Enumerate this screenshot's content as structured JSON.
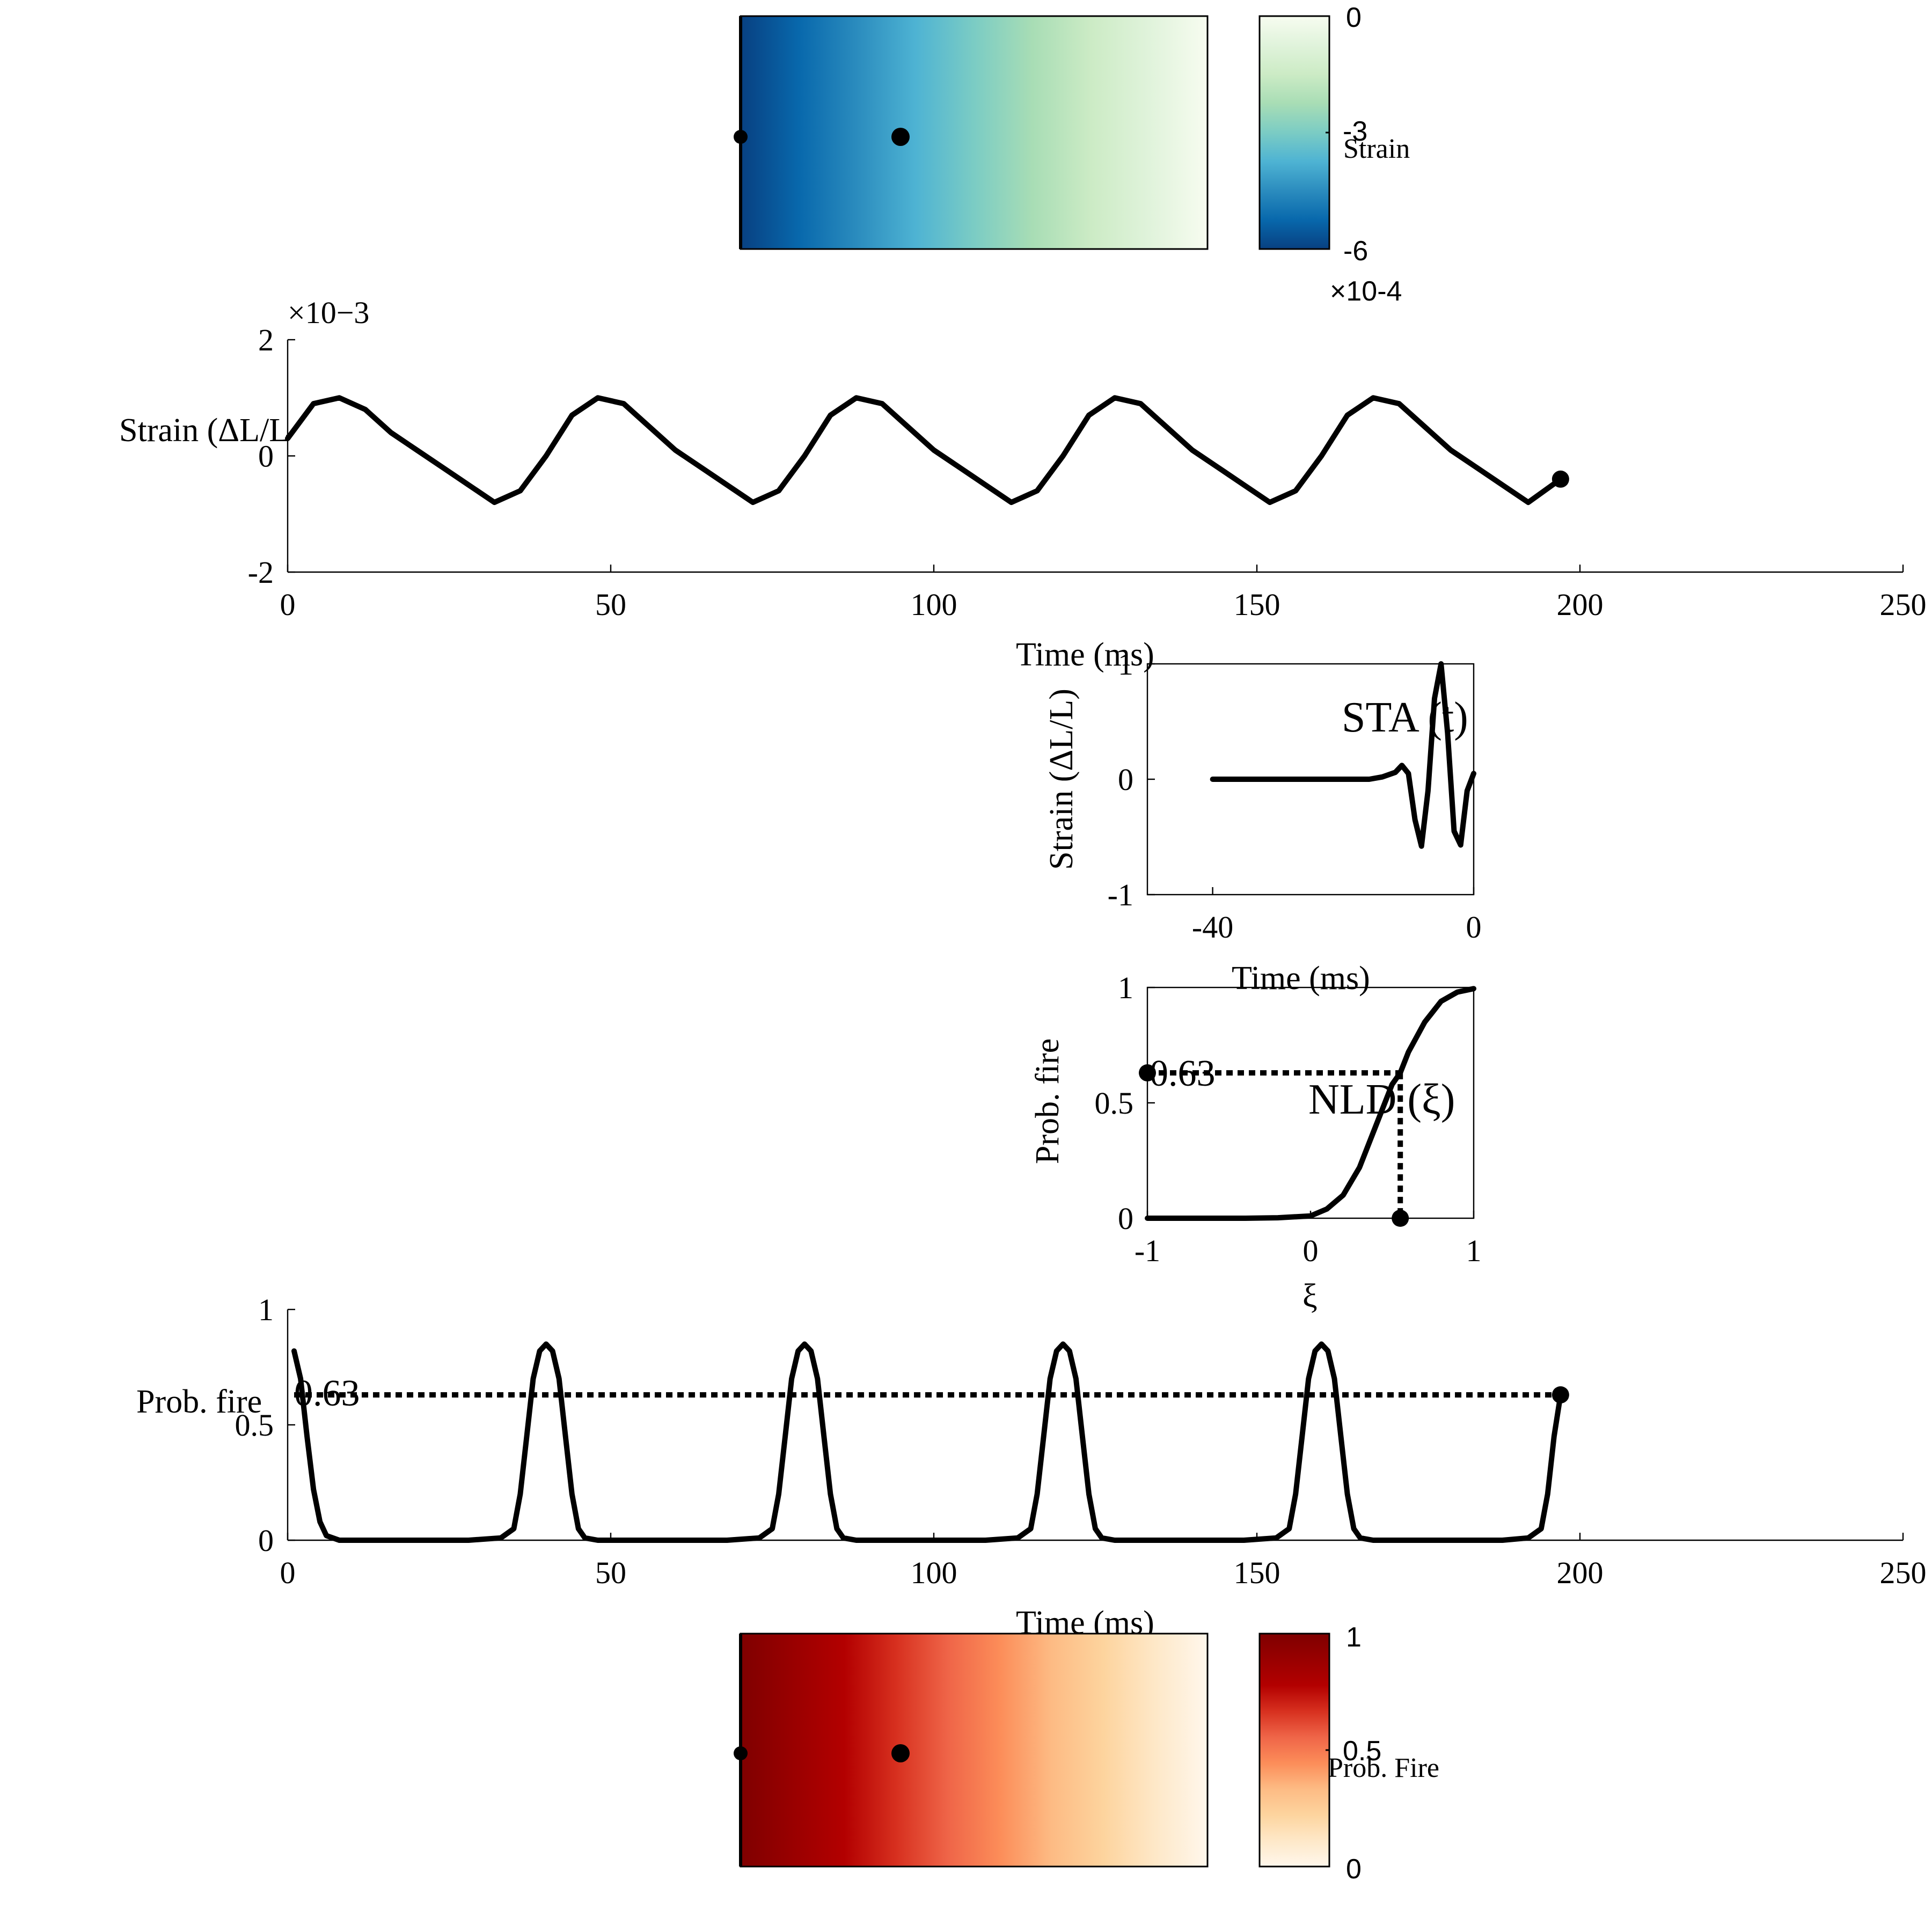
{
  "chart_data": [
    {
      "id": "strain_map",
      "type": "heatmap",
      "colormap": "GnBu",
      "colors": [
        "#084081",
        "#0868ac",
        "#2b8cbe",
        "#4eb3d3",
        "#7bccc4",
        "#a8ddb5",
        "#ccebc5",
        "#e0f3db",
        "#f7fcf0"
      ],
      "values_left_to_right": [
        -0.0006,
        0
      ],
      "markers": [
        "left-edge",
        "inner-point"
      ],
      "colorbar": {
        "ticks": [
          "0",
          "-3",
          "-6"
        ],
        "label": "Strain",
        "multiplier": "×10-4",
        "range": [
          -6,
          0
        ]
      }
    },
    {
      "id": "strain_trace",
      "type": "line",
      "xlabel": "Time (ms)",
      "ylabel": "Strain (ΔL/L",
      "xlim": [
        0,
        250
      ],
      "ylim": [
        -0.002,
        0.002
      ],
      "xticks": [
        "0",
        "50",
        "100",
        "150",
        "200",
        "250"
      ],
      "yticks": [
        "2",
        "0",
        "-2"
      ],
      "multiplier": "×10−3",
      "series": [
        {
          "x": [
            0,
            4,
            8,
            12,
            16,
            20,
            24,
            28,
            32,
            36,
            40,
            44,
            48,
            52,
            56,
            60,
            64,
            68,
            72,
            76,
            80,
            84,
            88,
            92,
            96,
            100,
            104,
            108,
            112,
            116,
            120,
            124,
            128,
            132,
            136,
            140,
            144,
            148,
            152,
            156,
            160,
            164,
            168,
            172,
            176,
            180,
            184,
            188,
            192,
            197
          ],
          "y": [
            0.0003,
            0.0009,
            0.001,
            0.0008,
            0.0004,
            0.0001,
            -0.0002,
            -0.0005,
            -0.0008,
            -0.0006,
            0.0,
            0.0007,
            0.001,
            0.0009,
            0.0005,
            0.0001,
            -0.0002,
            -0.0005,
            -0.0008,
            -0.0006,
            0.0,
            0.0007,
            0.001,
            0.0009,
            0.0005,
            0.0001,
            -0.0002,
            -0.0005,
            -0.0008,
            -0.0006,
            0.0,
            0.0007,
            0.001,
            0.0009,
            0.0005,
            0.0001,
            -0.0002,
            -0.0005,
            -0.0008,
            -0.0006,
            0.0,
            0.0007,
            0.001,
            0.0009,
            0.0005,
            0.0001,
            -0.0002,
            -0.0005,
            -0.0008,
            -0.0004
          ]
        }
      ],
      "marker": {
        "x": 197,
        "y": -0.0004
      }
    },
    {
      "id": "sta",
      "type": "line",
      "annotation": "STA (t)",
      "xlabel": "Time (ms)",
      "ylabel": "Strain (ΔL/L)",
      "xlim": [
        -50,
        0
      ],
      "ylim": [
        -1,
        1
      ],
      "xticks": [
        "-40",
        "0"
      ],
      "yticks": [
        "1",
        "0",
        "-1"
      ],
      "series": [
        {
          "x": [
            -40,
            -36,
            -32,
            -28,
            -24,
            -20,
            -16,
            -14,
            -12,
            -11,
            -10,
            -9,
            -8,
            -7,
            -6,
            -5,
            -4,
            -3,
            -2,
            -1,
            0
          ],
          "y": [
            0,
            0,
            0,
            0,
            0,
            0,
            0,
            0.02,
            0.06,
            0.12,
            0.05,
            -0.35,
            -0.58,
            -0.1,
            0.7,
            1.0,
            0.4,
            -0.45,
            -0.57,
            -0.1,
            0.05
          ]
        }
      ]
    },
    {
      "id": "nld",
      "type": "line",
      "annotation": "NLD (ξ)",
      "xlabel": "ξ",
      "ylabel": "Prob. fire",
      "xlim": [
        -1,
        1
      ],
      "ylim": [
        0,
        1
      ],
      "xticks": [
        "-1",
        "0",
        "1"
      ],
      "yticks": [
        "1",
        "0.5",
        "0"
      ],
      "series": [
        {
          "x": [
            -1,
            -0.8,
            -0.6,
            -0.4,
            -0.2,
            0,
            0.1,
            0.2,
            0.3,
            0.4,
            0.5,
            0.55,
            0.6,
            0.7,
            0.8,
            0.9,
            1.0
          ],
          "y": [
            0,
            0,
            0,
            0,
            0.002,
            0.01,
            0.04,
            0.1,
            0.22,
            0.4,
            0.58,
            0.63,
            0.72,
            0.85,
            0.94,
            0.98,
            0.995
          ]
        }
      ],
      "readout": {
        "xi": 0.55,
        "p": 0.63,
        "label": "0.63"
      }
    },
    {
      "id": "prob_trace",
      "type": "line",
      "xlabel": "Time (ms)",
      "ylabel": "Prob. fire",
      "xlim": [
        0,
        250
      ],
      "ylim": [
        0,
        1
      ],
      "xticks": [
        "0",
        "50",
        "100",
        "150",
        "200",
        "250"
      ],
      "yticks": [
        "1",
        "0.5",
        "0"
      ],
      "series": [
        {
          "x": [
            1,
            2,
            3,
            4,
            5,
            6,
            8,
            12,
            20,
            28,
            33,
            35,
            36,
            37,
            38,
            39,
            40,
            41,
            42,
            43,
            44,
            45,
            46,
            48,
            52,
            60,
            68,
            73,
            75,
            76,
            77,
            78,
            79,
            80,
            81,
            82,
            83,
            84,
            85,
            86,
            88,
            92,
            100,
            108,
            113,
            115,
            116,
            117,
            118,
            119,
            120,
            121,
            122,
            123,
            124,
            125,
            126,
            128,
            132,
            140,
            148,
            153,
            155,
            156,
            157,
            158,
            159,
            160,
            161,
            162,
            163,
            164,
            165,
            166,
            168,
            172,
            180,
            188,
            192,
            194,
            195,
            196,
            197
          ],
          "y": [
            0.82,
            0.7,
            0.45,
            0.22,
            0.08,
            0.02,
            0.0,
            0,
            0,
            0,
            0.01,
            0.05,
            0.2,
            0.45,
            0.7,
            0.82,
            0.85,
            0.82,
            0.7,
            0.45,
            0.2,
            0.05,
            0.01,
            0.0,
            0,
            0,
            0,
            0.01,
            0.05,
            0.2,
            0.45,
            0.7,
            0.82,
            0.85,
            0.82,
            0.7,
            0.45,
            0.2,
            0.05,
            0.01,
            0.0,
            0,
            0,
            0,
            0.01,
            0.05,
            0.2,
            0.45,
            0.7,
            0.82,
            0.85,
            0.82,
            0.7,
            0.45,
            0.2,
            0.05,
            0.01,
            0.0,
            0,
            0,
            0,
            0.01,
            0.05,
            0.2,
            0.45,
            0.7,
            0.82,
            0.85,
            0.82,
            0.7,
            0.45,
            0.2,
            0.05,
            0.01,
            0.0,
            0,
            0,
            0,
            0.01,
            0.05,
            0.2,
            0.45,
            0.63
          ]
        }
      ],
      "threshold": {
        "y": 0.63,
        "label": "0.63",
        "x_end": 197
      }
    },
    {
      "id": "prob_map",
      "type": "heatmap",
      "colormap": "OrRd",
      "colors": [
        "#7f0000",
        "#990000",
        "#b30000",
        "#d7301f",
        "#ef6548",
        "#fc8d59",
        "#fdbb84",
        "#fdd49e",
        "#fee8c8",
        "#fff7ec"
      ],
      "values_left_to_right": [
        1,
        0
      ],
      "markers": [
        "left-edge",
        "inner-point"
      ],
      "colorbar": {
        "ticks": [
          "1",
          "0.5",
          "0"
        ],
        "label": "Prob. Fire",
        "range": [
          0,
          1
        ]
      }
    }
  ]
}
